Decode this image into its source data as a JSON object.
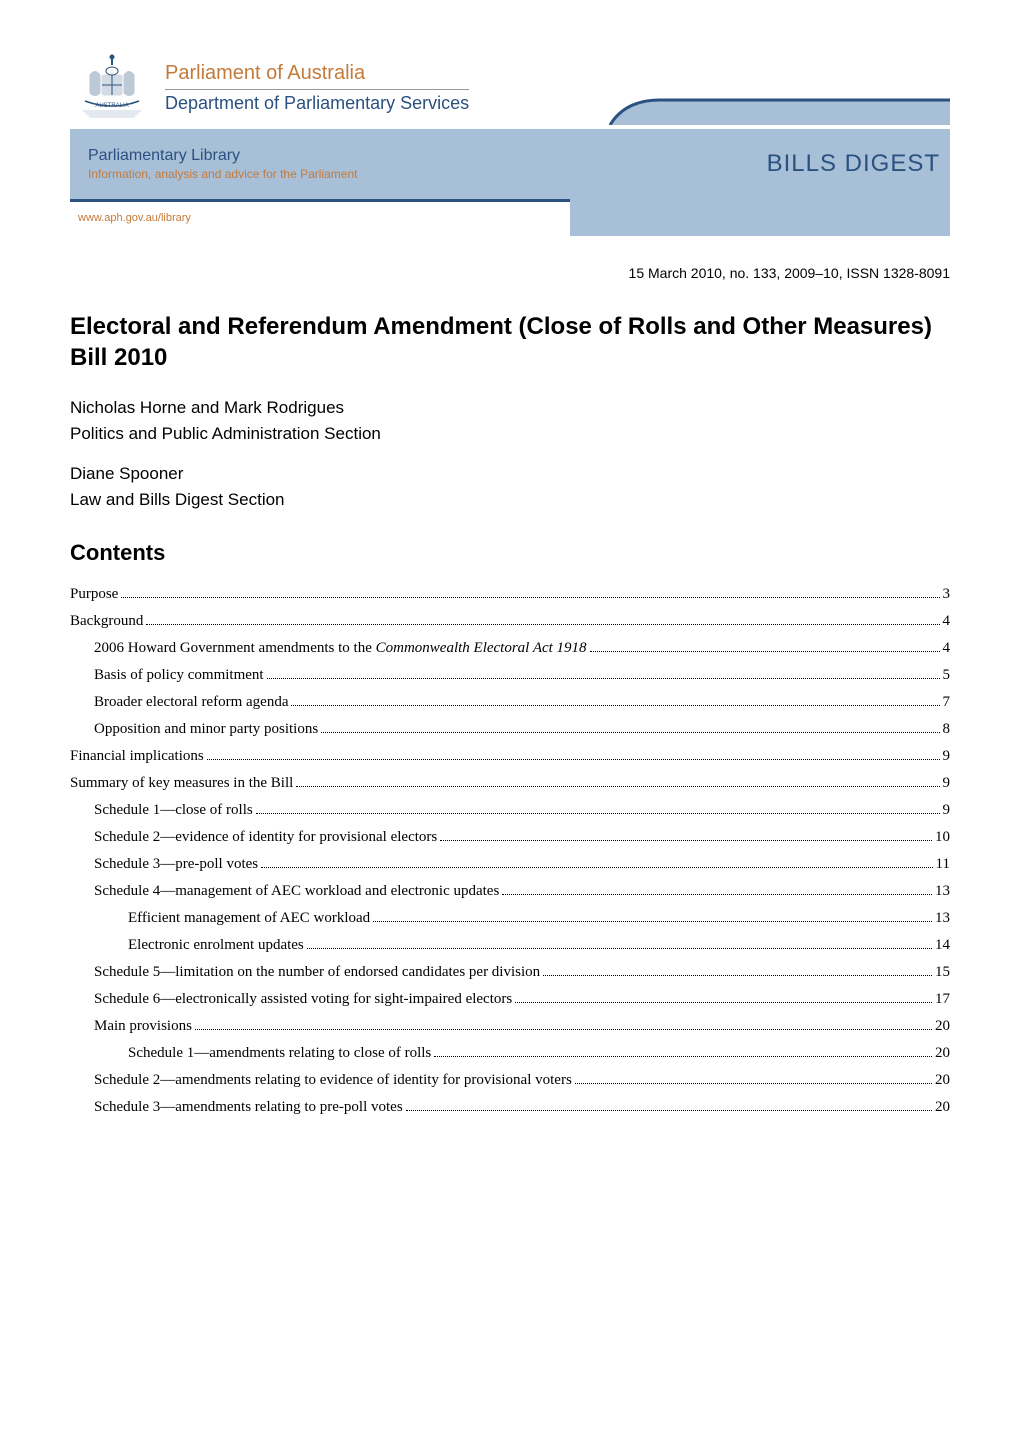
{
  "header": {
    "parliament_title": "Parliament of Australia",
    "department_title": "Department of Parliamentary Services",
    "library_title": "Parliamentary Library",
    "library_subtitle": "Information, analysis and advice for the Parliament",
    "bills_digest_label": "BILLS DIGEST",
    "url": "www.aph.gov.au/library",
    "crest_text": "AUSTRALIA",
    "colors": {
      "orange": "#c47a3a",
      "blue_text": "#2b5180",
      "blue_band": "#a8bfd8",
      "blue_border": "#2b5180",
      "white": "#ffffff"
    }
  },
  "issue_line": "15 March 2010, no. 133, 2009–10, ISSN 1328-8091",
  "bill_title": "Electoral and Referendum Amendment (Close of Rolls and Other Measures) Bill 2010",
  "authors1": "Nicholas Horne and Mark Rodrigues",
  "section1": "Politics and Public Administration Section",
  "authors2": "Diane Spooner",
  "section2": "Law and Bills Digest Section",
  "contents_heading": "Contents",
  "toc": [
    {
      "level": 0,
      "title": "Purpose",
      "page": "3"
    },
    {
      "level": 0,
      "title": "Background",
      "page": "4"
    },
    {
      "level": 1,
      "title_html": "2006 Howard Government amendments to the <span class=\"italic\">Commonwealth Electoral Act 1918</span>",
      "page": "4"
    },
    {
      "level": 1,
      "title": "Basis of policy commitment",
      "page": "5"
    },
    {
      "level": 1,
      "title": "Broader electoral reform agenda",
      "page": "7"
    },
    {
      "level": 1,
      "title": "Opposition and minor party positions",
      "page": "8"
    },
    {
      "level": 0,
      "title": "Financial implications",
      "page": "9"
    },
    {
      "level": 0,
      "title": "Summary of key measures in the Bill",
      "page": "9"
    },
    {
      "level": 1,
      "title": "Schedule 1—close of rolls",
      "page": "9"
    },
    {
      "level": 1,
      "title": "Schedule 2—evidence of identity for provisional electors",
      "page": "10"
    },
    {
      "level": 1,
      "title": "Schedule 3—pre-poll votes",
      "page": "11"
    },
    {
      "level": 1,
      "title": "Schedule 4—management of AEC workload and electronic updates",
      "page": "13"
    },
    {
      "level": 2,
      "title": "Efficient management of AEC workload",
      "page": "13"
    },
    {
      "level": 2,
      "title": "Electronic enrolment updates",
      "page": "14"
    },
    {
      "level": 1,
      "title": "Schedule 5—limitation on the number of endorsed candidates per division",
      "page": "15"
    },
    {
      "level": 1,
      "title": "Schedule 6—electronically assisted voting for sight-impaired electors",
      "page": "17"
    },
    {
      "level": 1,
      "title": "Main provisions",
      "page": "20"
    },
    {
      "level": 2,
      "title": "Schedule 1—amendments relating to close of rolls",
      "page": "20"
    },
    {
      "level": 1,
      "title": "Schedule 2—amendments relating to evidence of identity for provisional voters",
      "page": "20"
    },
    {
      "level": 1,
      "title": "Schedule 3—amendments relating to pre-poll votes",
      "page": "20"
    }
  ]
}
